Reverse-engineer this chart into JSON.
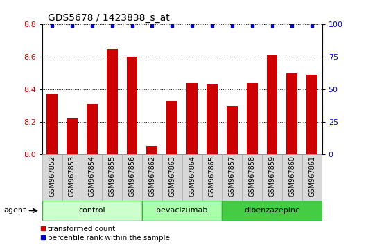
{
  "title": "GDS5678 / 1423838_s_at",
  "samples": [
    "GSM967852",
    "GSM967853",
    "GSM967854",
    "GSM967855",
    "GSM967856",
    "GSM967862",
    "GSM967863",
    "GSM967864",
    "GSM967865",
    "GSM967857",
    "GSM967858",
    "GSM967859",
    "GSM967860",
    "GSM967861"
  ],
  "bar_values": [
    8.37,
    8.22,
    8.31,
    8.65,
    8.6,
    8.05,
    8.33,
    8.44,
    8.43,
    8.3,
    8.44,
    8.61,
    8.5,
    8.49
  ],
  "bar_color": "#cc0000",
  "percentile_color": "#0000cc",
  "percentile_value": 99,
  "ylim_left": [
    8.0,
    8.8
  ],
  "ylim_right": [
    0,
    100
  ],
  "yticks_left": [
    8.0,
    8.2,
    8.4,
    8.6,
    8.8
  ],
  "yticks_right": [
    0,
    25,
    50,
    75,
    100
  ],
  "groups": [
    {
      "label": "control",
      "start": 0,
      "end": 5,
      "color": "#ccffcc"
    },
    {
      "label": "bevacizumab",
      "start": 5,
      "end": 9,
      "color": "#aaffaa"
    },
    {
      "label": "dibenzazepine",
      "start": 9,
      "end": 14,
      "color": "#44cc44"
    }
  ],
  "agent_label": "agent",
  "legend_bar_label": "transformed count",
  "legend_dot_label": "percentile rank within the sample",
  "bar_width": 0.55,
  "bg_color": "#ffffff",
  "grid_color": "#000000",
  "sample_label_fontsize": 7,
  "title_fontsize": 10,
  "group_label_fontsize": 8,
  "sample_cell_color": "#d8d8d8",
  "sample_cell_edge": "#aaaaaa"
}
